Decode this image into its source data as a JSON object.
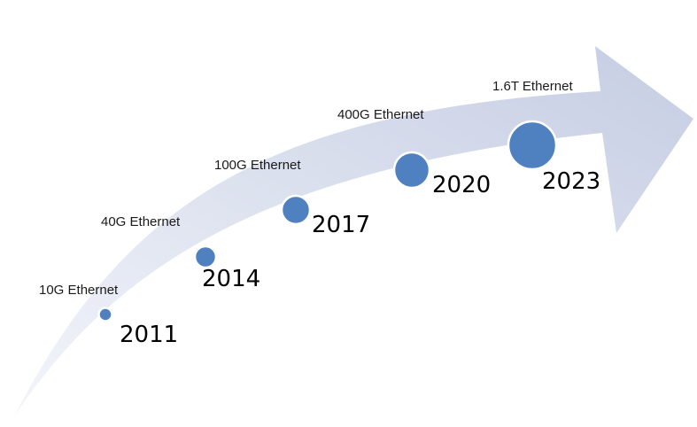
{
  "colors": {
    "arrow_light": "#f3f5fa",
    "arrow_dark": "#c5cde3",
    "dot": "#4f80c0",
    "dot_stroke": "#ffffff",
    "text": "#1a1a1a"
  },
  "milestones": [
    {
      "speed": "10G Ethernet",
      "year": "2011"
    },
    {
      "speed": "40G Ethernet",
      "year": "2014"
    },
    {
      "speed": "100G Ethernet",
      "year": "2017"
    },
    {
      "speed": "400G Ethernet",
      "year": "2020"
    },
    {
      "speed": "1.6T Ethernet",
      "year": "2023"
    }
  ]
}
